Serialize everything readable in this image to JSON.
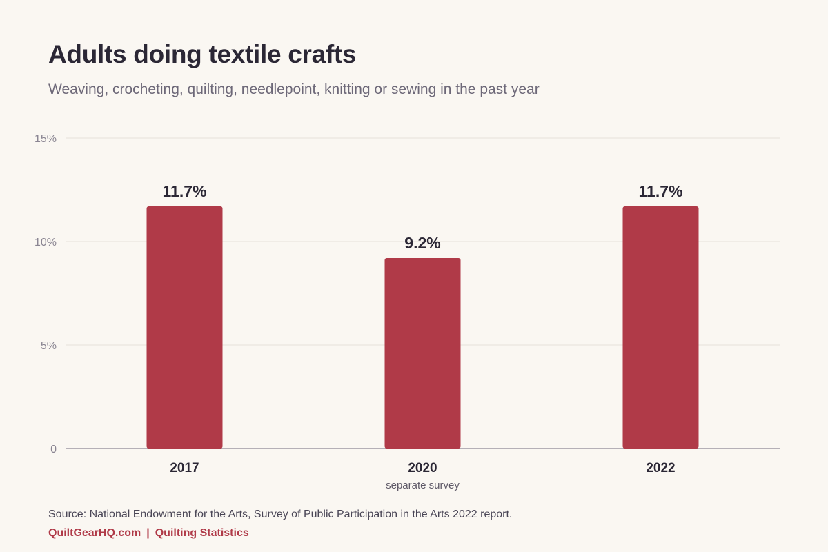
{
  "header": {
    "title": "Adults doing textile crafts",
    "subtitle": "Weaving, crocheting, quilting, needlepoint, knitting or sewing in the past year"
  },
  "chart_data": {
    "type": "bar",
    "categories": [
      "2017",
      "2020",
      "2022"
    ],
    "category_notes": [
      "",
      "separate survey",
      ""
    ],
    "values": [
      11.7,
      9.2,
      11.7
    ],
    "value_labels": [
      "11.7%",
      "9.2%",
      "11.7%"
    ],
    "ylim": [
      0,
      15
    ],
    "yticks": [
      0,
      5,
      10,
      15
    ],
    "ytick_labels": [
      "0",
      "5%",
      "10%",
      "15%"
    ],
    "grid": true,
    "bar_color": "#b03a48"
  },
  "footer": {
    "source": "Source: National Endowment for the Arts, Survey of Public Participation in the Arts 2022 report.",
    "brand": "QuiltGearHQ.com",
    "separator": "|",
    "section": "Quilting Statistics"
  },
  "colors": {
    "background": "#faf7f2",
    "grid": "#ebe6df",
    "axis": "#9e98a3",
    "text": "#2b2735",
    "muted": "#6d6878"
  }
}
